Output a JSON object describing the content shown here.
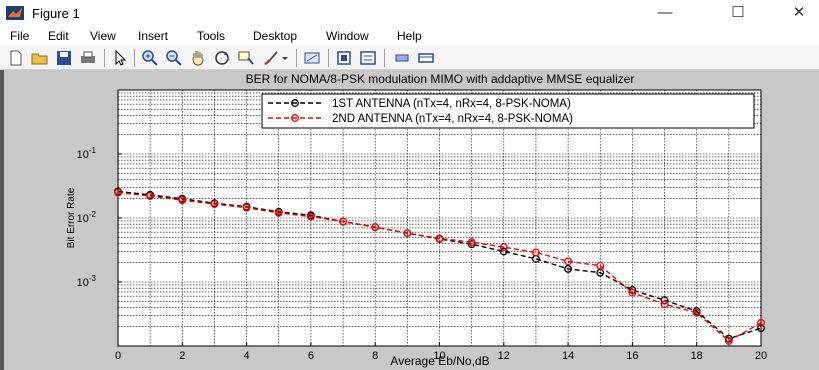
{
  "window": {
    "title": "Figure 1",
    "minimize_glyph": "—",
    "maximize_glyph": "☐",
    "close_glyph": "✕"
  },
  "menu": {
    "items": [
      "File",
      "Edit",
      "View",
      "Insert",
      "Tools",
      "Desktop",
      "Window",
      "Help"
    ]
  },
  "toolbar": {
    "icons": [
      "new-figure-icon",
      "open-file-icon",
      "save-icon",
      "print-icon",
      "edit-plot-icon",
      "zoom-in-icon",
      "zoom-out-icon",
      "pan-icon",
      "rotate-3d-icon",
      "data-cursor-icon",
      "brush-icon",
      "brush-dropdown-icon",
      "link-plot-icon",
      "colorbar-icon",
      "legend-icon",
      "hide-plot-tools-icon",
      "show-plot-tools-icon"
    ]
  },
  "chart_data": {
    "type": "line",
    "title": "BER for NOMA/8-PSK modulation MIMO with addaptive MMSE equalizer",
    "xlabel": "Average Eb/No,dB",
    "ylabel": "Bit Error Rate",
    "xlim": [
      0,
      20
    ],
    "ylim": [
      0.0001,
      1
    ],
    "yscale": "log",
    "grid": true,
    "legend": "top-right",
    "xticks": [
      "0",
      "2",
      "4",
      "6",
      "8",
      "10",
      "12",
      "14",
      "16",
      "18",
      "20"
    ],
    "yticks": [
      {
        "base": "10",
        "exp": "-1",
        "value": 0.1
      },
      {
        "base": "10",
        "exp": "-2",
        "value": 0.01
      },
      {
        "base": "10",
        "exp": "-3",
        "value": 0.001
      }
    ],
    "x": [
      0,
      1,
      2,
      3,
      4,
      5,
      6,
      7,
      8,
      9,
      10,
      11,
      12,
      13,
      14,
      15,
      16,
      17,
      18,
      19,
      20
    ],
    "series": [
      {
        "name": "1ST ANTENNA (nTx=4, nRx=4, 8-PSK-NOMA)",
        "color": "#000000",
        "values": [
          0.026,
          0.023,
          0.02,
          0.017,
          0.015,
          0.0125,
          0.011,
          0.0088,
          0.0072,
          0.0058,
          0.0047,
          0.0039,
          0.003,
          0.0023,
          0.0016,
          0.0014,
          0.00075,
          0.00052,
          0.00035,
          0.00013,
          0.00019
        ]
      },
      {
        "name": "2ND ANTENNA (nTx=4, nRx=4, 8-PSK-NOMA)",
        "color": "#ff0000",
        "values": [
          0.025,
          0.022,
          0.019,
          0.0165,
          0.0145,
          0.012,
          0.0105,
          0.0088,
          0.0072,
          0.0058,
          0.0048,
          0.0042,
          0.0035,
          0.0029,
          0.0021,
          0.0018,
          0.00068,
          0.00045,
          0.00033,
          0.00012,
          0.00023
        ]
      }
    ]
  }
}
